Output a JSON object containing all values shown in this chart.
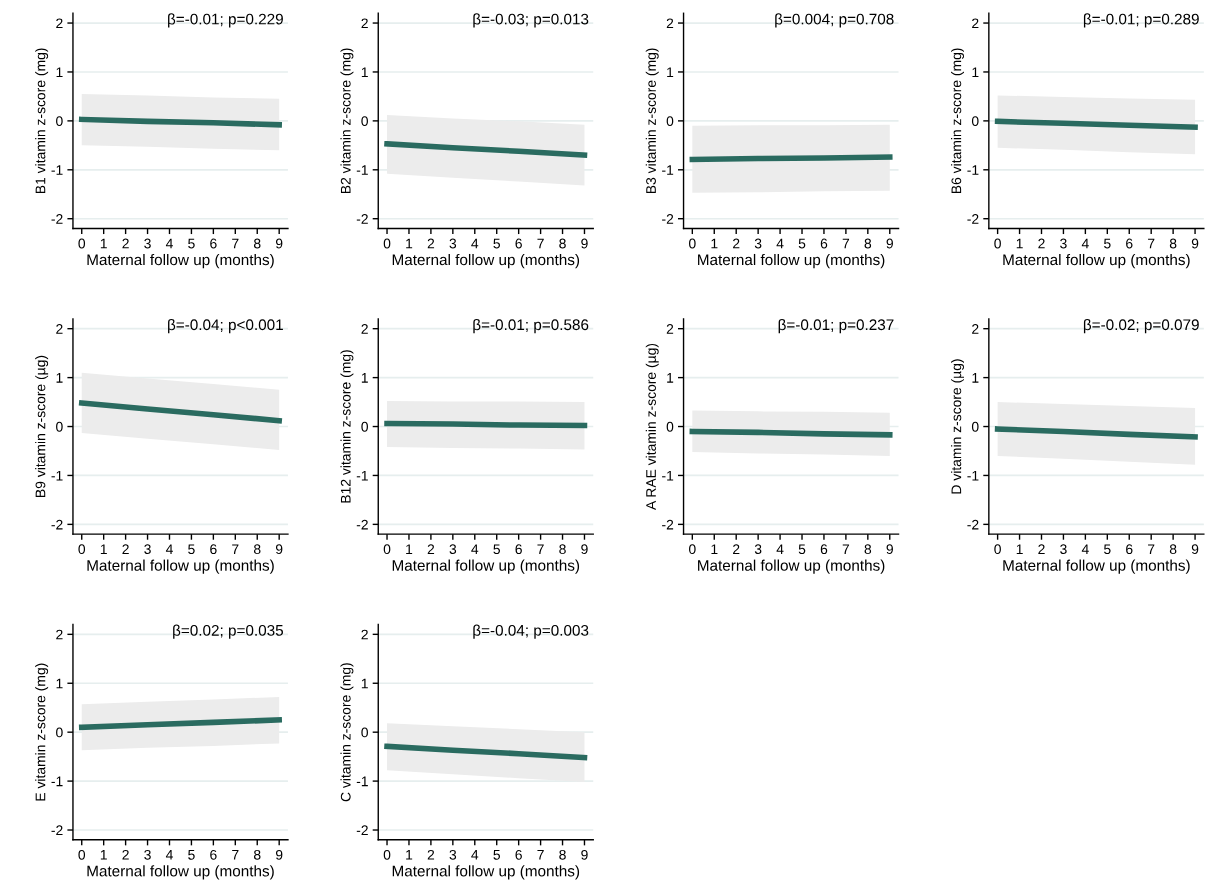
{
  "chart_data": [
    {
      "type": "line",
      "ylabel": "B1 vitamin z-score (mg)",
      "xlabel": "Maternal follow up (months)",
      "annotations": [
        "β=-0.01; p=0.229"
      ],
      "x": [
        0,
        3,
        6,
        9
      ],
      "series": [
        {
          "color": "#2a6b60",
          "values": [
            0.03,
            -0.01,
            -0.04,
            -0.08
          ],
          "lower": [
            -0.5,
            -0.53,
            -0.57,
            -0.6
          ],
          "upper": [
            0.55,
            0.52,
            0.48,
            0.45
          ]
        }
      ],
      "xlim": [
        -0.4,
        9.4
      ],
      "ylim": [
        -2.2,
        2.2
      ],
      "xticks": [
        0,
        1,
        2,
        3,
        4,
        5,
        6,
        7,
        8,
        9
      ],
      "yticks": [
        -2,
        -1,
        0,
        1,
        2
      ],
      "grid": "y",
      "legend": false
    },
    {
      "type": "line",
      "ylabel": "B2 vitamin z-score (mg)",
      "xlabel": "Maternal follow up (months)",
      "annotations": [
        "β=-0.03; p=0.013"
      ],
      "x": [
        0,
        3,
        6,
        9
      ],
      "series": [
        {
          "color": "#2a6b60",
          "values": [
            -0.47,
            -0.55,
            -0.62,
            -0.7
          ],
          "lower": [
            -1.08,
            -1.16,
            -1.24,
            -1.32
          ],
          "upper": [
            0.12,
            0.05,
            -0.01,
            -0.08
          ]
        }
      ],
      "xlim": [
        -0.4,
        9.4
      ],
      "ylim": [
        -2.2,
        2.2
      ],
      "xticks": [
        0,
        1,
        2,
        3,
        4,
        5,
        6,
        7,
        8,
        9
      ],
      "yticks": [
        -2,
        -1,
        0,
        1,
        2
      ],
      "grid": "y",
      "legend": false
    },
    {
      "type": "line",
      "ylabel": "B3 vitamin z-score (mg)",
      "xlabel": "Maternal follow up (months)",
      "annotations": [
        "β=0.004; p=0.708"
      ],
      "x": [
        0,
        3,
        6,
        9
      ],
      "series": [
        {
          "color": "#2a6b60",
          "values": [
            -0.79,
            -0.77,
            -0.76,
            -0.74
          ],
          "lower": [
            -1.47,
            -1.46,
            -1.44,
            -1.43
          ],
          "upper": [
            -0.1,
            -0.09,
            -0.09,
            -0.08
          ]
        }
      ],
      "xlim": [
        -0.4,
        9.4
      ],
      "ylim": [
        -2.2,
        2.2
      ],
      "xticks": [
        0,
        1,
        2,
        3,
        4,
        5,
        6,
        7,
        8,
        9
      ],
      "yticks": [
        -2,
        -1,
        0,
        1,
        2
      ],
      "grid": "y",
      "legend": false
    },
    {
      "type": "line",
      "ylabel": "B6 vitamin z-score (mg)",
      "xlabel": "Maternal follow up (months)",
      "annotations": [
        "β=-0.01; p=0.289"
      ],
      "x": [
        0,
        3,
        6,
        9
      ],
      "series": [
        {
          "color": "#2a6b60",
          "values": [
            -0.01,
            -0.05,
            -0.09,
            -0.13
          ],
          "lower": [
            -0.55,
            -0.59,
            -0.64,
            -0.68
          ],
          "upper": [
            0.52,
            0.49,
            0.46,
            0.43
          ]
        }
      ],
      "xlim": [
        -0.4,
        9.4
      ],
      "ylim": [
        -2.2,
        2.2
      ],
      "xticks": [
        0,
        1,
        2,
        3,
        4,
        5,
        6,
        7,
        8,
        9
      ],
      "yticks": [
        -2,
        -1,
        0,
        1,
        2
      ],
      "grid": "y",
      "legend": false
    },
    {
      "type": "line",
      "ylabel": "B9 vitamin z-score (µg)",
      "xlabel": "Maternal follow up (months)",
      "annotations": [
        "β=-0.04; p<0.001"
      ],
      "x": [
        0,
        3,
        6,
        9
      ],
      "series": [
        {
          "color": "#2a6b60",
          "values": [
            0.48,
            0.36,
            0.24,
            0.12
          ],
          "lower": [
            -0.13,
            -0.25,
            -0.36,
            -0.48
          ],
          "upper": [
            1.1,
            0.98,
            0.87,
            0.75
          ]
        }
      ],
      "xlim": [
        -0.4,
        9.4
      ],
      "ylim": [
        -2.2,
        2.2
      ],
      "xticks": [
        0,
        1,
        2,
        3,
        4,
        5,
        6,
        7,
        8,
        9
      ],
      "yticks": [
        -2,
        -1,
        0,
        1,
        2
      ],
      "grid": "y",
      "legend": false
    },
    {
      "type": "line",
      "ylabel": "B12 vitamin z-score (mg)",
      "xlabel": "Maternal follow up (months)",
      "annotations": [
        "β=-0.01; p=0.586"
      ],
      "x": [
        0,
        3,
        6,
        9
      ],
      "series": [
        {
          "color": "#2a6b60",
          "values": [
            0.06,
            0.05,
            0.03,
            0.02
          ],
          "lower": [
            -0.42,
            -0.44,
            -0.45,
            -0.47
          ],
          "upper": [
            0.52,
            0.51,
            0.51,
            0.5
          ]
        }
      ],
      "xlim": [
        -0.4,
        9.4
      ],
      "ylim": [
        -2.2,
        2.2
      ],
      "xticks": [
        0,
        1,
        2,
        3,
        4,
        5,
        6,
        7,
        8,
        9
      ],
      "yticks": [
        -2,
        -1,
        0,
        1,
        2
      ],
      "grid": "y",
      "legend": false
    },
    {
      "type": "line",
      "ylabel": "A RAE vitamin z-score (µg)",
      "xlabel": "Maternal follow up (months)",
      "annotations": [
        "β=-0.01; p=0.237"
      ],
      "x": [
        0,
        3,
        6,
        9
      ],
      "series": [
        {
          "color": "#2a6b60",
          "values": [
            -0.1,
            -0.12,
            -0.15,
            -0.17
          ],
          "lower": [
            -0.52,
            -0.55,
            -0.57,
            -0.6
          ],
          "upper": [
            0.33,
            0.31,
            0.3,
            0.28
          ]
        }
      ],
      "xlim": [
        -0.4,
        9.4
      ],
      "ylim": [
        -2.2,
        2.2
      ],
      "xticks": [
        0,
        1,
        2,
        3,
        4,
        5,
        6,
        7,
        8,
        9
      ],
      "yticks": [
        -2,
        -1,
        0,
        1,
        2
      ],
      "grid": "y",
      "legend": false
    },
    {
      "type": "line",
      "ylabel": "D vitamin z-score (µg)",
      "xlabel": "Maternal follow up (months)",
      "annotations": [
        "β=-0.02; p=0.079"
      ],
      "x": [
        0,
        3,
        6,
        9
      ],
      "series": [
        {
          "color": "#2a6b60",
          "values": [
            -0.05,
            -0.1,
            -0.16,
            -0.21
          ],
          "lower": [
            -0.6,
            -0.66,
            -0.72,
            -0.78
          ],
          "upper": [
            0.5,
            0.46,
            0.42,
            0.38
          ]
        }
      ],
      "xlim": [
        -0.4,
        9.4
      ],
      "ylim": [
        -2.2,
        2.2
      ],
      "xticks": [
        0,
        1,
        2,
        3,
        4,
        5,
        6,
        7,
        8,
        9
      ],
      "yticks": [
        -2,
        -1,
        0,
        1,
        2
      ],
      "grid": "y",
      "legend": false
    },
    {
      "type": "line",
      "ylabel": "E vitamin z-score (mg)",
      "xlabel": "Maternal follow up (months)",
      "annotations": [
        "β=0.02; p=0.035"
      ],
      "x": [
        0,
        3,
        6,
        9
      ],
      "series": [
        {
          "color": "#2a6b60",
          "values": [
            0.1,
            0.15,
            0.2,
            0.25
          ],
          "lower": [
            -0.37,
            -0.32,
            -0.28,
            -0.23
          ],
          "upper": [
            0.57,
            0.62,
            0.67,
            0.72
          ]
        }
      ],
      "xlim": [
        -0.4,
        9.4
      ],
      "ylim": [
        -2.2,
        2.2
      ],
      "xticks": [
        0,
        1,
        2,
        3,
        4,
        5,
        6,
        7,
        8,
        9
      ],
      "yticks": [
        -2,
        -1,
        0,
        1,
        2
      ],
      "grid": "y",
      "legend": false
    },
    {
      "type": "line",
      "ylabel": "C vitamin z-score (mg)",
      "xlabel": "Maternal follow up (months)",
      "annotations": [
        "β=-0.04; p=0.003"
      ],
      "x": [
        0,
        3,
        6,
        9
      ],
      "series": [
        {
          "color": "#2a6b60",
          "values": [
            -0.29,
            -0.37,
            -0.44,
            -0.52
          ],
          "lower": [
            -0.78,
            -0.86,
            -0.94,
            -1.02
          ],
          "upper": [
            0.18,
            0.12,
            0.06,
            0.0
          ]
        }
      ],
      "xlim": [
        -0.4,
        9.4
      ],
      "ylim": [
        -2.2,
        2.2
      ],
      "xticks": [
        0,
        1,
        2,
        3,
        4,
        5,
        6,
        7,
        8,
        9
      ],
      "yticks": [
        -2,
        -1,
        0,
        1,
        2
      ],
      "grid": "y",
      "legend": false
    }
  ]
}
